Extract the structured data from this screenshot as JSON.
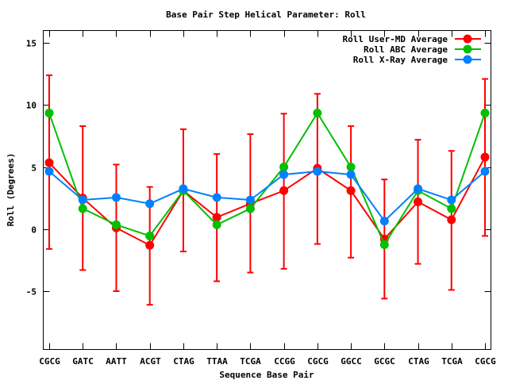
{
  "chart_data": {
    "type": "line",
    "title": "Base Pair Step Helical Parameter: Roll",
    "xlabel": "Sequence Base Pair",
    "ylabel": "Roll (Degrees)",
    "ylim": [
      -9.7,
      16
    ],
    "yticks": [
      15,
      10,
      5,
      0,
      -5
    ],
    "grid": false,
    "legend_position": "top-right",
    "categories": [
      "CGCG",
      "GATC",
      "AATT",
      "ACGT",
      "CTAG",
      "TTAA",
      "TCGA",
      "CCGG",
      "CGCG",
      "GGCC",
      "GCGC",
      "CTAG",
      "TCGA",
      "CGCG"
    ],
    "series": [
      {
        "name": "Roll User-MD Average",
        "color": "#ff0000",
        "values": [
          5.35,
          2.5,
          0.1,
          -1.3,
          3.1,
          0.95,
          2.05,
          3.1,
          4.9,
          3.1,
          -0.8,
          2.2,
          0.75,
          5.8
        ],
        "error_low": [
          -1.6,
          -3.3,
          -5.0,
          -6.1,
          -1.8,
          -4.2,
          -3.5,
          -3.2,
          -1.2,
          -2.3,
          -5.6,
          -2.8,
          -4.9,
          -0.55
        ],
        "error_high": [
          12.4,
          8.3,
          5.2,
          3.4,
          8.05,
          6.05,
          7.65,
          9.3,
          10.9,
          8.3,
          4.0,
          7.2,
          6.3,
          12.1
        ]
      },
      {
        "name": "Roll ABC Average",
        "color": "#00c000",
        "values": [
          9.35,
          1.65,
          0.35,
          -0.55,
          3.1,
          0.35,
          1.65,
          5.0,
          9.35,
          5.0,
          -1.25,
          3.1,
          1.65,
          9.35
        ]
      },
      {
        "name": "Roll X-Ray Average",
        "color": "#0080ff",
        "values": [
          4.65,
          2.35,
          2.55,
          2.05,
          3.25,
          2.55,
          2.35,
          4.4,
          4.65,
          4.4,
          0.65,
          3.25,
          2.35,
          4.65
        ]
      }
    ]
  }
}
